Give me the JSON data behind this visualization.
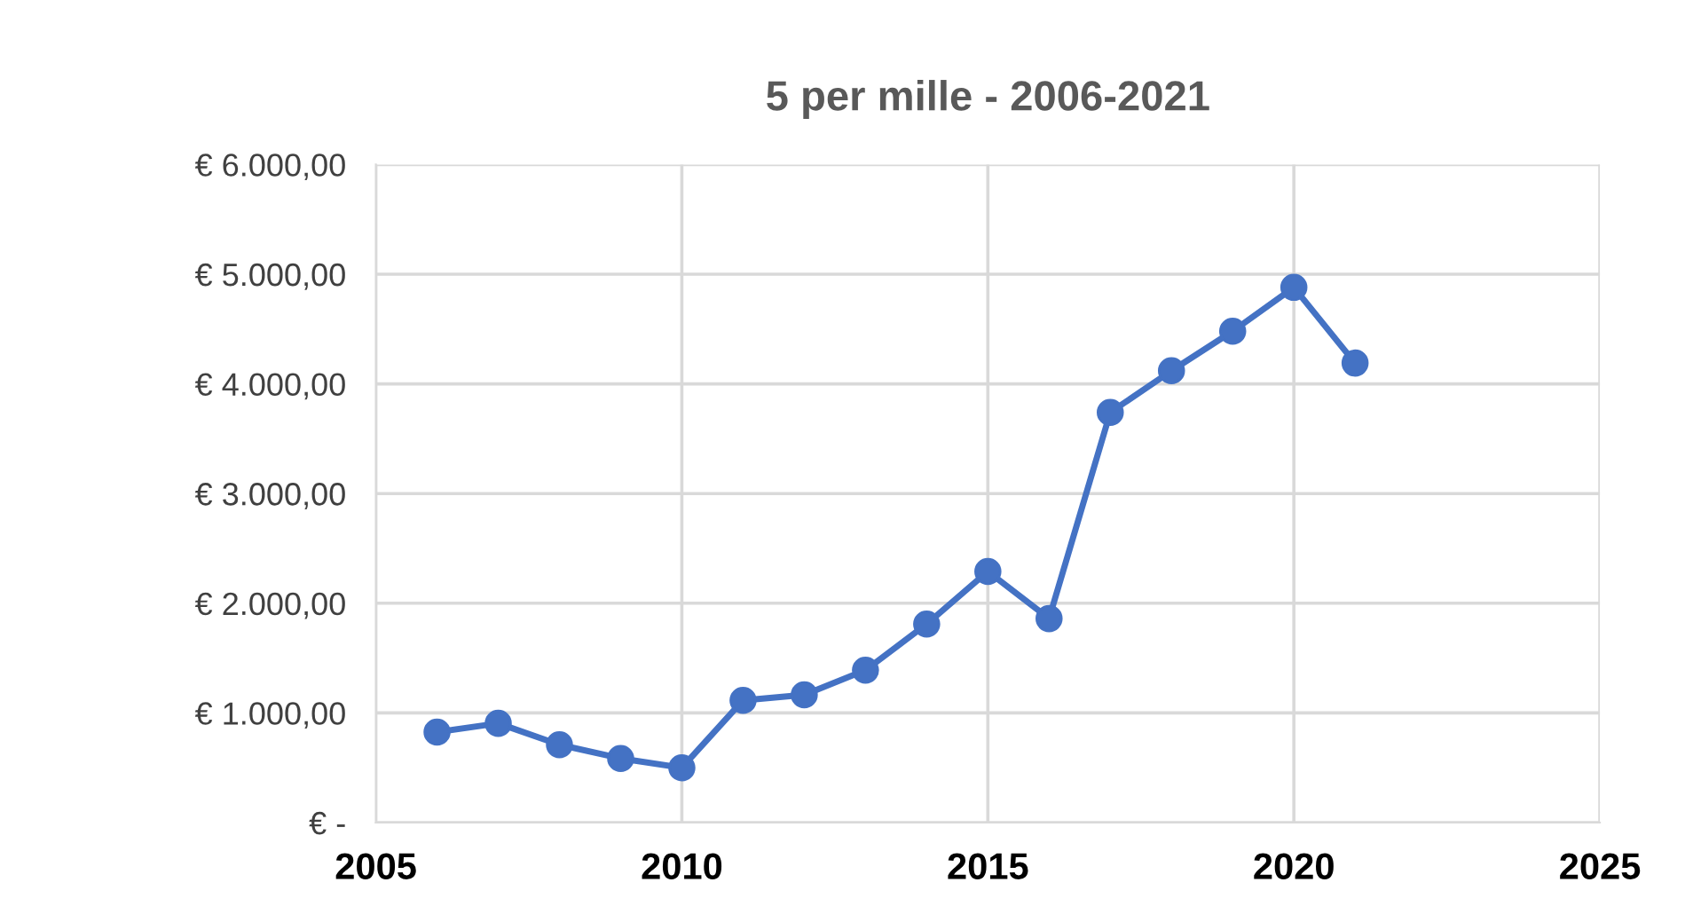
{
  "chart_data": {
    "type": "line",
    "title": "5 per mille - 2006-2021",
    "x": [
      2006,
      2007,
      2008,
      2009,
      2010,
      2011,
      2012,
      2013,
      2014,
      2015,
      2016,
      2017,
      2018,
      2019,
      2020,
      2021
    ],
    "series": [
      {
        "color": "#4472c4",
        "values": [
          825,
          905,
          710,
          585,
          500,
          1115,
          1165,
          1390,
          1810,
          2290,
          1860,
          3740,
          4120,
          4480,
          4880,
          4190
        ]
      }
    ],
    "xlim": [
      2005,
      2025
    ],
    "xticks": [
      2005,
      2010,
      2015,
      2020,
      2025
    ],
    "ylim": [
      0,
      6000
    ],
    "yticks": [
      {
        "value": 0,
        "label": "€ -"
      },
      {
        "value": 1000,
        "label": "€ 1.000,00"
      },
      {
        "value": 2000,
        "label": "€ 2.000,00"
      },
      {
        "value": 3000,
        "label": "€ 3.000,00"
      },
      {
        "value": 4000,
        "label": "€ 4.000,00"
      },
      {
        "value": 5000,
        "label": "€ 5.000,00"
      },
      {
        "value": 6000,
        "label": "€ 6.000,00"
      }
    ],
    "grid": true,
    "marker": "circle",
    "line_style": "solid",
    "legend": false
  }
}
